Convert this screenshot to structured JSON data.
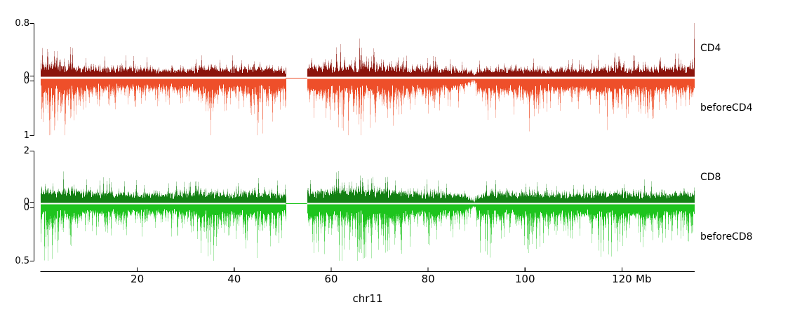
{
  "page": {
    "background": "#ffffff"
  },
  "chart_data": {
    "type": "area",
    "subtype": "genome-signal-tracks",
    "title": "",
    "xlabel": "chr11",
    "x_unit": "Mb",
    "xlim_mb": [
      0,
      135
    ],
    "x_ticks_mb": [
      20,
      40,
      60,
      80,
      100,
      120
    ],
    "centromere_gap_mb": [
      50.6,
      55.0
    ],
    "low_coverage_notch_mb": 89.5,
    "noise_seed": 11,
    "axis_color": "#000000",
    "legend_position": "right",
    "grid": false,
    "tracks": [
      {
        "name": "CD4",
        "label": "CD4",
        "color": "#8b140c",
        "direction": "up",
        "ylim": [
          0,
          0.8
        ],
        "axis_tick_labels": [
          "0.8",
          "0"
        ],
        "base_level": 0.1,
        "env_ref": 0.3,
        "mid_prob": 0.62,
        "deep_prob": 0.055,
        "peak": {
          "mb": 134.85,
          "value": 0.8
        },
        "profile": [
          [
            0,
            0.38
          ],
          [
            3,
            0.42
          ],
          [
            6,
            0.4
          ],
          [
            9,
            0.3
          ],
          [
            14,
            0.28
          ],
          [
            18,
            0.3
          ],
          [
            22,
            0.26
          ],
          [
            26,
            0.25
          ],
          [
            30,
            0.26
          ],
          [
            34,
            0.32
          ],
          [
            36,
            0.3
          ],
          [
            40,
            0.28
          ],
          [
            44,
            0.34
          ],
          [
            46,
            0.38
          ],
          [
            48,
            0.3
          ],
          [
            50.5,
            0.26
          ],
          [
            55,
            0.3
          ],
          [
            58,
            0.38
          ],
          [
            60,
            0.44
          ],
          [
            63,
            0.5
          ],
          [
            65,
            0.52
          ],
          [
            67,
            0.48
          ],
          [
            70,
            0.42
          ],
          [
            72,
            0.38
          ],
          [
            75,
            0.32
          ],
          [
            78,
            0.3
          ],
          [
            82,
            0.27
          ],
          [
            86,
            0.26
          ],
          [
            89,
            0.2
          ],
          [
            89.5,
            0.06
          ],
          [
            90,
            0.22
          ],
          [
            93,
            0.28
          ],
          [
            96,
            0.3
          ],
          [
            100,
            0.26
          ],
          [
            104,
            0.25
          ],
          [
            108,
            0.26
          ],
          [
            112,
            0.27
          ],
          [
            116,
            0.3
          ],
          [
            119,
            0.32
          ],
          [
            122,
            0.28
          ],
          [
            126,
            0.27
          ],
          [
            129,
            0.3
          ],
          [
            131,
            0.33
          ],
          [
            133,
            0.3
          ],
          [
            134.5,
            0.4
          ],
          [
            135,
            0.45
          ]
        ]
      },
      {
        "name": "beforeCD4",
        "label": "beforeCD4",
        "color": "#ee4f2a",
        "direction": "down",
        "ylim": [
          0,
          1
        ],
        "axis_tick_labels": [
          "0",
          "1"
        ],
        "base_level": 0.18,
        "env_ref": 0.55,
        "mid_prob": 0.62,
        "deep_prob": 0.15,
        "profile": [
          [
            0,
            0.85
          ],
          [
            2,
            0.95
          ],
          [
            5,
            0.9
          ],
          [
            8,
            0.55
          ],
          [
            12,
            0.45
          ],
          [
            16,
            0.48
          ],
          [
            20,
            0.45
          ],
          [
            24,
            0.42
          ],
          [
            28,
            0.45
          ],
          [
            32,
            0.5
          ],
          [
            34.5,
            0.95
          ],
          [
            35.5,
            0.95
          ],
          [
            37,
            0.55
          ],
          [
            40,
            0.5
          ],
          [
            43,
            0.6
          ],
          [
            45,
            0.95
          ],
          [
            47,
            0.9
          ],
          [
            49,
            0.55
          ],
          [
            50.5,
            0.45
          ],
          [
            55,
            0.6
          ],
          [
            57,
            0.75
          ],
          [
            59,
            0.65
          ],
          [
            61,
            0.9
          ],
          [
            63,
            0.95
          ],
          [
            65,
            0.98
          ],
          [
            67,
            0.9
          ],
          [
            69,
            0.7
          ],
          [
            71,
            0.75
          ],
          [
            73,
            0.9
          ],
          [
            75,
            0.65
          ],
          [
            78,
            0.5
          ],
          [
            81,
            0.6
          ],
          [
            84,
            0.48
          ],
          [
            87,
            0.45
          ],
          [
            89.5,
            0.1
          ],
          [
            90.5,
            0.7
          ],
          [
            92,
            0.88
          ],
          [
            94,
            0.6
          ],
          [
            97,
            0.55
          ],
          [
            100,
            0.7
          ],
          [
            101,
            0.85
          ],
          [
            103,
            0.55
          ],
          [
            106,
            0.5
          ],
          [
            109,
            0.52
          ],
          [
            112,
            0.48
          ],
          [
            115,
            0.6
          ],
          [
            117,
            0.95
          ],
          [
            119,
            0.95
          ],
          [
            121,
            0.65
          ],
          [
            124,
            0.55
          ],
          [
            126,
            0.7
          ],
          [
            128,
            0.5
          ],
          [
            131,
            0.48
          ],
          [
            134,
            0.5
          ],
          [
            135,
            0.55
          ]
        ]
      },
      {
        "name": "CD8",
        "label": "CD8",
        "color": "#138013",
        "direction": "up",
        "ylim": [
          0,
          2
        ],
        "axis_tick_labels": [
          "2",
          "0"
        ],
        "base_level": 0.33,
        "env_ref": 0.9,
        "mid_prob": 0.62,
        "deep_prob": 0.06,
        "profile": [
          [
            0,
            1.1
          ],
          [
            3,
            1.2
          ],
          [
            6,
            1.1
          ],
          [
            10,
            0.9
          ],
          [
            15,
            0.85
          ],
          [
            20,
            0.8
          ],
          [
            25,
            0.75
          ],
          [
            30,
            0.8
          ],
          [
            34,
            0.9
          ],
          [
            38,
            0.8
          ],
          [
            42,
            0.8
          ],
          [
            45,
            0.95
          ],
          [
            48,
            0.8
          ],
          [
            50.5,
            0.7
          ],
          [
            55,
            0.85
          ],
          [
            58,
            1.0
          ],
          [
            61,
            1.15
          ],
          [
            64,
            1.25
          ],
          [
            67,
            1.15
          ],
          [
            70,
            1.05
          ],
          [
            73,
            0.95
          ],
          [
            76,
            0.85
          ],
          [
            80,
            0.8
          ],
          [
            84,
            0.75
          ],
          [
            88,
            0.7
          ],
          [
            89.5,
            0.15
          ],
          [
            90.5,
            0.7
          ],
          [
            93,
            0.8
          ],
          [
            96,
            0.85
          ],
          [
            100,
            0.8
          ],
          [
            105,
            0.75
          ],
          [
            110,
            0.78
          ],
          [
            114,
            0.8
          ],
          [
            118,
            0.9
          ],
          [
            122,
            0.82
          ],
          [
            126,
            0.78
          ],
          [
            130,
            0.8
          ],
          [
            133,
            0.85
          ],
          [
            135,
            0.9
          ]
        ]
      },
      {
        "name": "beforeCD8",
        "label": "beforeCD8",
        "color": "#1dc41d",
        "direction": "down",
        "ylim": [
          0,
          0.5
        ],
        "axis_tick_labels": [
          "0",
          "0.5"
        ],
        "base_level": 0.085,
        "env_ref": 0.3,
        "mid_prob": 0.62,
        "deep_prob": 0.15,
        "profile": [
          [
            0,
            0.42
          ],
          [
            2,
            0.48
          ],
          [
            5,
            0.45
          ],
          [
            8,
            0.3
          ],
          [
            12,
            0.25
          ],
          [
            16,
            0.27
          ],
          [
            20,
            0.25
          ],
          [
            24,
            0.24
          ],
          [
            28,
            0.25
          ],
          [
            32,
            0.3
          ],
          [
            34.5,
            0.48
          ],
          [
            36,
            0.45
          ],
          [
            38,
            0.3
          ],
          [
            41,
            0.28
          ],
          [
            44,
            0.45
          ],
          [
            46,
            0.48
          ],
          [
            48,
            0.32
          ],
          [
            50.5,
            0.28
          ],
          [
            55,
            0.33
          ],
          [
            57,
            0.4
          ],
          [
            60,
            0.42
          ],
          [
            62,
            0.48
          ],
          [
            64,
            0.5
          ],
          [
            66,
            0.48
          ],
          [
            68,
            0.42
          ],
          [
            71,
            0.42
          ],
          [
            73,
            0.46
          ],
          [
            75,
            0.36
          ],
          [
            78,
            0.3
          ],
          [
            81,
            0.33
          ],
          [
            84,
            0.28
          ],
          [
            87,
            0.26
          ],
          [
            89.5,
            0.06
          ],
          [
            90.5,
            0.38
          ],
          [
            92,
            0.46
          ],
          [
            95,
            0.32
          ],
          [
            98,
            0.3
          ],
          [
            101,
            0.42
          ],
          [
            104,
            0.3
          ],
          [
            107,
            0.28
          ],
          [
            110,
            0.29
          ],
          [
            113,
            0.28
          ],
          [
            116,
            0.46
          ],
          [
            118,
            0.48
          ],
          [
            120,
            0.36
          ],
          [
            123,
            0.3
          ],
          [
            126,
            0.38
          ],
          [
            129,
            0.28
          ],
          [
            132,
            0.28
          ],
          [
            135,
            0.3
          ]
        ]
      }
    ]
  }
}
